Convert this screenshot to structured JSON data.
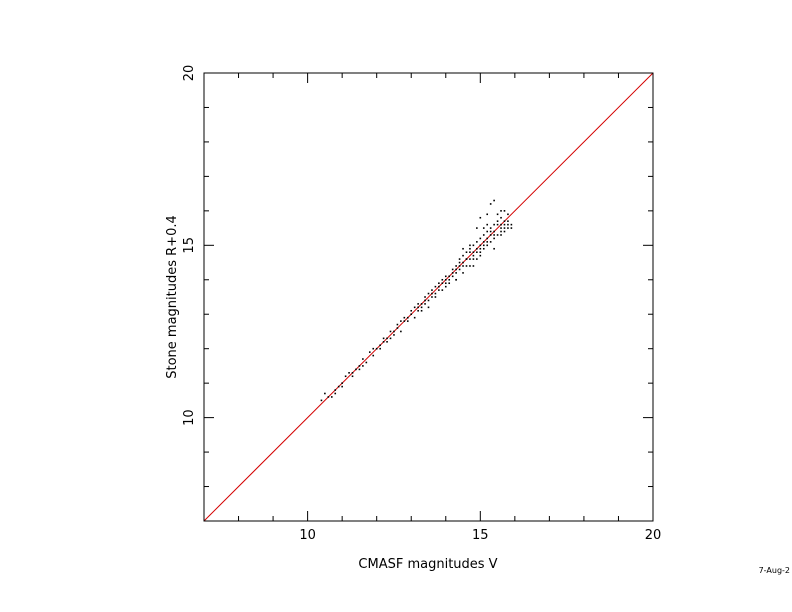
{
  "chart_data": {
    "type": "scatter",
    "title": "",
    "xlabel": "CMASF magnitudes V",
    "ylabel": "Stone magnitudes R+0.4",
    "xlim": [
      7,
      20
    ],
    "ylim": [
      7,
      20
    ],
    "x_major_ticks": [
      10,
      15,
      20
    ],
    "y_major_ticks": [
      10,
      15,
      20
    ],
    "minor_tick_step": 1,
    "grid": false,
    "reference_line": {
      "from": [
        7,
        7
      ],
      "to": [
        20,
        20
      ],
      "color": "#d40000"
    },
    "point_color": "#000000",
    "series": [
      {
        "points": [
          [
            10.4,
            10.5
          ],
          [
            10.5,
            10.7
          ],
          [
            10.6,
            10.6
          ],
          [
            10.7,
            10.6
          ],
          [
            10.8,
            10.8
          ],
          [
            10.9,
            10.9
          ],
          [
            11.0,
            10.9
          ],
          [
            11.1,
            11.2
          ],
          [
            11.2,
            11.3
          ],
          [
            11.3,
            11.3
          ],
          [
            11.4,
            11.4
          ],
          [
            11.5,
            11.5
          ],
          [
            11.6,
            11.5
          ],
          [
            11.6,
            11.7
          ],
          [
            11.8,
            11.9
          ],
          [
            11.9,
            12.0
          ],
          [
            12.0,
            12.0
          ],
          [
            12.1,
            12.1
          ],
          [
            12.2,
            12.3
          ],
          [
            12.3,
            12.3
          ],
          [
            12.4,
            12.5
          ],
          [
            12.5,
            12.5
          ],
          [
            12.6,
            12.6
          ],
          [
            12.7,
            12.8
          ],
          [
            12.8,
            12.9
          ],
          [
            12.9,
            12.9
          ],
          [
            13.0,
            13.1
          ],
          [
            13.1,
            13.2
          ],
          [
            13.2,
            13.3
          ],
          [
            13.3,
            13.3
          ],
          [
            13.4,
            13.5
          ],
          [
            13.5,
            13.6
          ],
          [
            13.6,
            13.6
          ],
          [
            13.7,
            13.8
          ],
          [
            13.8,
            13.9
          ],
          [
            13.9,
            14.0
          ],
          [
            14.0,
            14.0
          ],
          [
            14.1,
            14.1
          ],
          [
            14.2,
            14.3
          ],
          [
            14.3,
            14.3
          ],
          [
            14.4,
            14.5
          ],
          [
            14.5,
            14.5
          ],
          [
            14.6,
            14.6
          ],
          [
            14.7,
            14.8
          ],
          [
            14.8,
            14.8
          ],
          [
            14.9,
            14.9
          ],
          [
            15.0,
            15.0
          ],
          [
            15.1,
            15.1
          ],
          [
            15.2,
            15.2
          ],
          [
            15.3,
            15.4
          ],
          [
            15.4,
            15.4
          ],
          [
            15.5,
            15.6
          ],
          [
            15.6,
            15.6
          ],
          [
            15.7,
            15.7
          ],
          [
            15.8,
            15.6
          ],
          [
            15.7,
            15.5
          ],
          [
            13.2,
            13.1
          ],
          [
            13.4,
            13.3
          ],
          [
            13.6,
            13.5
          ],
          [
            13.8,
            13.7
          ],
          [
            14.0,
            13.9
          ],
          [
            14.2,
            14.1
          ],
          [
            14.4,
            14.3
          ],
          [
            14.6,
            14.4
          ],
          [
            14.8,
            14.6
          ],
          [
            15.0,
            14.8
          ],
          [
            15.2,
            15.0
          ],
          [
            15.4,
            15.2
          ],
          [
            15.6,
            15.4
          ],
          [
            15.8,
            15.5
          ],
          [
            14.1,
            13.9
          ],
          [
            14.3,
            14.0
          ],
          [
            14.5,
            14.2
          ],
          [
            14.7,
            14.4
          ],
          [
            14.9,
            14.6
          ],
          [
            15.1,
            14.9
          ],
          [
            15.3,
            15.1
          ],
          [
            15.5,
            15.3
          ],
          [
            15.7,
            15.6
          ],
          [
            15.4,
            15.6
          ],
          [
            15.3,
            15.5
          ],
          [
            15.2,
            15.4
          ],
          [
            15.1,
            15.3
          ],
          [
            15.0,
            15.2
          ],
          [
            14.9,
            15.1
          ],
          [
            14.8,
            15.0
          ],
          [
            14.7,
            14.9
          ],
          [
            14.6,
            14.8
          ],
          [
            14.5,
            14.7
          ],
          [
            14.4,
            14.6
          ],
          [
            14.3,
            14.4
          ],
          [
            15.5,
            15.9
          ],
          [
            15.6,
            16.0
          ],
          [
            15.4,
            16.3
          ],
          [
            15.3,
            16.2
          ],
          [
            15.0,
            15.8
          ],
          [
            15.2,
            15.9
          ],
          [
            15.6,
            15.8
          ],
          [
            15.8,
            15.9
          ],
          [
            15.7,
            16.0
          ],
          [
            14.9,
            15.5
          ],
          [
            14.7,
            15.0
          ],
          [
            14.5,
            14.9
          ],
          [
            15.9,
            15.6
          ],
          [
            15.9,
            15.5
          ],
          [
            15.4,
            14.9
          ],
          [
            15.0,
            14.7
          ],
          [
            14.8,
            14.4
          ],
          [
            14.3,
            14.0
          ],
          [
            14.0,
            13.8
          ],
          [
            13.9,
            13.7
          ],
          [
            13.7,
            13.5
          ],
          [
            13.5,
            13.2
          ],
          [
            13.3,
            13.1
          ],
          [
            13.1,
            12.9
          ],
          [
            12.9,
            12.8
          ],
          [
            12.7,
            12.5
          ],
          [
            12.5,
            12.4
          ],
          [
            12.3,
            12.2
          ],
          [
            12.1,
            12.0
          ],
          [
            12.8,
            12.8
          ],
          [
            12.6,
            12.7
          ],
          [
            13.0,
            13.0
          ],
          [
            13.2,
            13.2
          ],
          [
            13.4,
            13.4
          ],
          [
            13.6,
            13.7
          ],
          [
            13.8,
            13.8
          ],
          [
            14.0,
            14.1
          ],
          [
            14.2,
            14.2
          ],
          [
            14.4,
            14.4
          ],
          [
            14.6,
            14.6
          ],
          [
            14.8,
            14.7
          ],
          [
            15.0,
            14.9
          ],
          [
            15.2,
            15.1
          ],
          [
            15.4,
            15.3
          ],
          [
            15.6,
            15.5
          ],
          [
            15.3,
            15.3
          ],
          [
            15.1,
            15.0
          ],
          [
            14.9,
            14.8
          ],
          [
            14.7,
            14.6
          ],
          [
            14.5,
            14.4
          ],
          [
            14.3,
            14.2
          ],
          [
            14.1,
            14.0
          ],
          [
            13.9,
            13.9
          ],
          [
            13.7,
            13.6
          ],
          [
            13.5,
            13.4
          ],
          [
            13.3,
            13.2
          ],
          [
            11.3,
            11.2
          ],
          [
            11.5,
            11.4
          ],
          [
            11.7,
            11.6
          ],
          [
            11.9,
            11.8
          ],
          [
            12.2,
            12.2
          ],
          [
            12.4,
            12.3
          ],
          [
            10.8,
            10.7
          ],
          [
            11.0,
            11.0
          ],
          [
            15.5,
            15.7
          ],
          [
            15.6,
            15.3
          ],
          [
            15.7,
            15.4
          ],
          [
            15.8,
            15.7
          ],
          [
            15.1,
            15.5
          ],
          [
            15.2,
            15.6
          ]
        ]
      }
    ]
  },
  "footer": {
    "date_stamp": "7-Aug-2"
  }
}
